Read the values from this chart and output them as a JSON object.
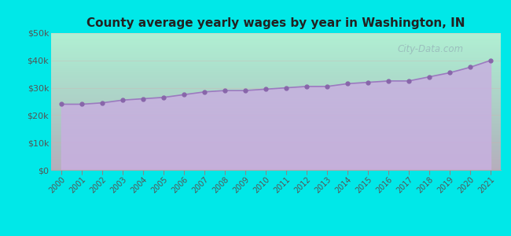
{
  "title": "County average yearly wages by year in Washington, IN",
  "years": [
    2000,
    2001,
    2002,
    2003,
    2004,
    2005,
    2006,
    2007,
    2008,
    2009,
    2010,
    2011,
    2012,
    2013,
    2014,
    2015,
    2016,
    2017,
    2018,
    2019,
    2020,
    2021
  ],
  "wages": [
    24000,
    24000,
    24500,
    25500,
    26000,
    26500,
    27500,
    28500,
    29000,
    29000,
    29500,
    30000,
    30500,
    30500,
    31500,
    32000,
    32500,
    32500,
    34000,
    35500,
    37500,
    40000
  ],
  "ylim": [
    0,
    50000
  ],
  "yticks": [
    0,
    10000,
    20000,
    30000,
    40000,
    50000
  ],
  "ytick_labels": [
    "$0",
    "$10k",
    "$20k",
    "$30k",
    "$40k",
    "$50k"
  ],
  "background_color": "#00e8e8",
  "fill_color_top": "#c8b0e0",
  "fill_color_bottom": "#d8c0f0",
  "line_color": "#9b7bbf",
  "marker_color": "#8866aa",
  "title_color": "#222222",
  "tick_color": "#555555",
  "watermark_text": "City-Data.com",
  "watermark_color": "#99bbbb",
  "chart_bg_top_color": "#f0fff0",
  "chart_bg_bottom_color": "#d8eef8"
}
